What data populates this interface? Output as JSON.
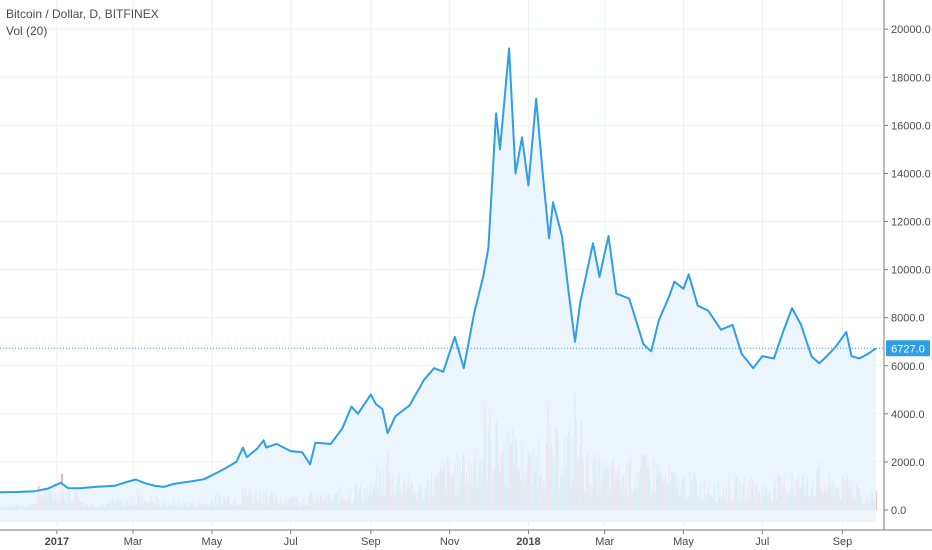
{
  "legend": {
    "title": "Bitcoin / Dollar, D, BITFINEX",
    "volume_label": "Vol (20)"
  },
  "colors": {
    "price_line": "#2e9ee8",
    "area_fill": "#e9f3fc",
    "grid": "#eef1f4",
    "axis": "#7a7a7a",
    "last_price_badge": "#2e9ee8",
    "volume_up": "#8fd0c6",
    "volume_down": "#f0a1a1"
  },
  "chart_data": {
    "type": "line",
    "title": "Bitcoin / Dollar, D, BITFINEX",
    "xlabel": "",
    "ylabel": "",
    "x_range": [
      "2016-11-18",
      "2018-09-27"
    ],
    "ylim": [
      -500,
      20800
    ],
    "y_ticks": [
      0,
      2000,
      4000,
      6000,
      8000,
      10000,
      12000,
      14000,
      16000,
      18000,
      20000
    ],
    "y_tick_labels": [
      "0.0",
      "2000.0",
      "4000.0",
      "6000.0",
      "8000.0",
      "10000.0",
      "12000.0",
      "14000.0",
      "16000.0",
      "18000.0",
      "20000.0"
    ],
    "x_ticks": [
      {
        "date": "2017-01-01",
        "label": "2017",
        "bold": true
      },
      {
        "date": "2017-03-01",
        "label": "Mar",
        "bold": false
      },
      {
        "date": "2017-05-01",
        "label": "May",
        "bold": false
      },
      {
        "date": "2017-07-01",
        "label": "Jul",
        "bold": false
      },
      {
        "date": "2017-09-01",
        "label": "Sep",
        "bold": false
      },
      {
        "date": "2017-11-01",
        "label": "Nov",
        "bold": false
      },
      {
        "date": "2018-01-01",
        "label": "2018",
        "bold": true
      },
      {
        "date": "2018-03-01",
        "label": "Mar",
        "bold": false
      },
      {
        "date": "2018-05-01",
        "label": "May",
        "bold": false
      },
      {
        "date": "2018-07-01",
        "label": "Jul",
        "bold": false
      },
      {
        "date": "2018-09-01",
        "label": "Sep",
        "bold": false
      }
    ],
    "grid": true,
    "last_price": 6727.0,
    "last_price_label": "6727.0",
    "series": [
      {
        "name": "Bitcoin / Dollar",
        "points": [
          [
            "2016-11-18",
            735
          ],
          [
            "2016-12-01",
            750
          ],
          [
            "2016-12-15",
            780
          ],
          [
            "2016-12-25",
            890
          ],
          [
            "2017-01-04",
            1130
          ],
          [
            "2017-01-10",
            900
          ],
          [
            "2017-01-20",
            910
          ],
          [
            "2017-02-01",
            970
          ],
          [
            "2017-02-15",
            1010
          ],
          [
            "2017-02-25",
            1180
          ],
          [
            "2017-03-03",
            1270
          ],
          [
            "2017-03-10",
            1120
          ],
          [
            "2017-03-18",
            1000
          ],
          [
            "2017-03-25",
            960
          ],
          [
            "2017-04-01",
            1080
          ],
          [
            "2017-04-15",
            1190
          ],
          [
            "2017-04-25",
            1280
          ],
          [
            "2017-05-05",
            1550
          ],
          [
            "2017-05-12",
            1750
          ],
          [
            "2017-05-20",
            2000
          ],
          [
            "2017-05-25",
            2600
          ],
          [
            "2017-05-28",
            2200
          ],
          [
            "2017-06-05",
            2550
          ],
          [
            "2017-06-10",
            2900
          ],
          [
            "2017-06-12",
            2600
          ],
          [
            "2017-06-20",
            2750
          ],
          [
            "2017-07-01",
            2450
          ],
          [
            "2017-07-10",
            2400
          ],
          [
            "2017-07-16",
            1900
          ],
          [
            "2017-07-20",
            2800
          ],
          [
            "2017-08-01",
            2750
          ],
          [
            "2017-08-10",
            3400
          ],
          [
            "2017-08-17",
            4300
          ],
          [
            "2017-08-22",
            4000
          ],
          [
            "2017-09-01",
            4800
          ],
          [
            "2017-09-05",
            4400
          ],
          [
            "2017-09-10",
            4200
          ],
          [
            "2017-09-14",
            3200
          ],
          [
            "2017-09-20",
            3900
          ],
          [
            "2017-10-01",
            4350
          ],
          [
            "2017-10-12",
            5400
          ],
          [
            "2017-10-20",
            5900
          ],
          [
            "2017-10-27",
            5750
          ],
          [
            "2017-11-05",
            7200
          ],
          [
            "2017-11-12",
            5900
          ],
          [
            "2017-11-20",
            8200
          ],
          [
            "2017-11-27",
            9700
          ],
          [
            "2017-12-01",
            10900
          ],
          [
            "2017-12-07",
            16500
          ],
          [
            "2017-12-10",
            15000
          ],
          [
            "2017-12-17",
            19200
          ],
          [
            "2017-12-22",
            14000
          ],
          [
            "2017-12-27",
            15500
          ],
          [
            "2018-01-01",
            13500
          ],
          [
            "2018-01-07",
            17100
          ],
          [
            "2018-01-12",
            14000
          ],
          [
            "2018-01-17",
            11300
          ],
          [
            "2018-01-20",
            12800
          ],
          [
            "2018-01-27",
            11400
          ],
          [
            "2018-02-01",
            9100
          ],
          [
            "2018-02-06",
            7000
          ],
          [
            "2018-02-10",
            8600
          ],
          [
            "2018-02-20",
            11100
          ],
          [
            "2018-02-25",
            9700
          ],
          [
            "2018-03-04",
            11400
          ],
          [
            "2018-03-10",
            9000
          ],
          [
            "2018-03-20",
            8800
          ],
          [
            "2018-03-31",
            6900
          ],
          [
            "2018-04-06",
            6600
          ],
          [
            "2018-04-12",
            7900
          ],
          [
            "2018-04-20",
            8900
          ],
          [
            "2018-04-24",
            9500
          ],
          [
            "2018-05-01",
            9200
          ],
          [
            "2018-05-05",
            9800
          ],
          [
            "2018-05-12",
            8500
          ],
          [
            "2018-05-20",
            8300
          ],
          [
            "2018-05-30",
            7500
          ],
          [
            "2018-06-08",
            7700
          ],
          [
            "2018-06-15",
            6500
          ],
          [
            "2018-06-24",
            5900
          ],
          [
            "2018-07-01",
            6400
          ],
          [
            "2018-07-10",
            6300
          ],
          [
            "2018-07-17",
            7400
          ],
          [
            "2018-07-24",
            8400
          ],
          [
            "2018-07-31",
            7700
          ],
          [
            "2018-08-08",
            6400
          ],
          [
            "2018-08-14",
            6100
          ],
          [
            "2018-08-20",
            6400
          ],
          [
            "2018-08-27",
            6800
          ],
          [
            "2018-09-04",
            7400
          ],
          [
            "2018-09-08",
            6400
          ],
          [
            "2018-09-14",
            6300
          ],
          [
            "2018-09-21",
            6500
          ],
          [
            "2018-09-27",
            6727
          ]
        ]
      }
    ],
    "volume": {
      "name": "Vol (20)",
      "points": [
        [
          "2016-12-01",
          250,
          "up"
        ],
        [
          "2016-12-15",
          300,
          "down"
        ],
        [
          "2017-01-05",
          1500,
          "down"
        ],
        [
          "2017-01-20",
          350,
          "up"
        ],
        [
          "2017-02-10",
          280,
          "up"
        ],
        [
          "2017-03-05",
          650,
          "down"
        ],
        [
          "2017-03-20",
          500,
          "down"
        ],
        [
          "2017-04-10",
          300,
          "up"
        ],
        [
          "2017-05-01",
          450,
          "up"
        ],
        [
          "2017-05-25",
          900,
          "down"
        ],
        [
          "2017-06-12",
          850,
          "down"
        ],
        [
          "2017-07-01",
          500,
          "up"
        ],
        [
          "2017-07-16",
          700,
          "down"
        ],
        [
          "2017-08-05",
          650,
          "up"
        ],
        [
          "2017-08-20",
          1100,
          "up"
        ],
        [
          "2017-09-05",
          1000,
          "up"
        ],
        [
          "2017-09-14",
          2500,
          "down"
        ],
        [
          "2017-10-01",
          900,
          "up"
        ],
        [
          "2017-10-15",
          1300,
          "up"
        ],
        [
          "2017-10-25",
          1800,
          "down"
        ],
        [
          "2017-11-12",
          2400,
          "down"
        ],
        [
          "2017-11-20",
          2000,
          "up"
        ],
        [
          "2017-11-28",
          4200,
          "down"
        ],
        [
          "2017-12-07",
          3600,
          "up"
        ],
        [
          "2017-12-17",
          3200,
          "up"
        ],
        [
          "2017-12-22",
          3000,
          "down"
        ],
        [
          "2018-01-01",
          2400,
          "down"
        ],
        [
          "2018-01-07",
          2100,
          "up"
        ],
        [
          "2018-01-16",
          4300,
          "down"
        ],
        [
          "2018-01-27",
          1800,
          "up"
        ],
        [
          "2018-02-06",
          4900,
          "up"
        ],
        [
          "2018-02-12",
          2100,
          "down"
        ],
        [
          "2018-02-25",
          2200,
          "up"
        ],
        [
          "2018-03-10",
          1700,
          "down"
        ],
        [
          "2018-03-20",
          2000,
          "up"
        ],
        [
          "2018-03-31",
          2200,
          "down"
        ],
        [
          "2018-04-12",
          1900,
          "up"
        ],
        [
          "2018-04-25",
          1400,
          "up"
        ],
        [
          "2018-05-10",
          1500,
          "down"
        ],
        [
          "2018-05-25",
          1100,
          "up"
        ],
        [
          "2018-06-10",
          1200,
          "down"
        ],
        [
          "2018-06-24",
          1300,
          "down"
        ],
        [
          "2018-07-10",
          1000,
          "up"
        ],
        [
          "2018-07-24",
          1600,
          "up"
        ],
        [
          "2018-08-05",
          1400,
          "down"
        ],
        [
          "2018-08-14",
          1800,
          "down"
        ],
        [
          "2018-08-27",
          1000,
          "up"
        ],
        [
          "2018-09-05",
          1500,
          "down"
        ],
        [
          "2018-09-14",
          900,
          "up"
        ],
        [
          "2018-09-24",
          700,
          "up"
        ]
      ]
    }
  }
}
